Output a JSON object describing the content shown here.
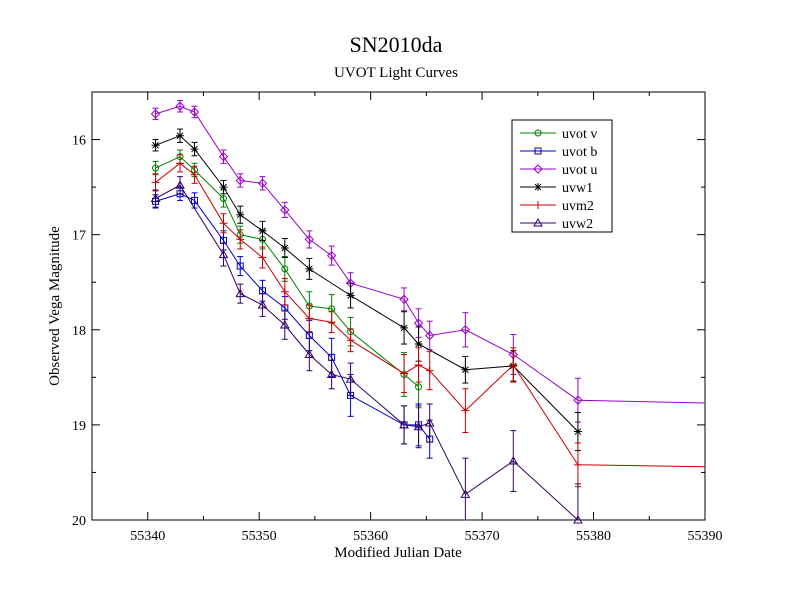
{
  "chart_data": {
    "type": "line",
    "title": "SN2010da",
    "subtitle": "UVOT Light Curves",
    "xlabel": "Modified Julian Date",
    "ylabel": "Observed Vega Magnitude",
    "xlim": [
      55335,
      55390
    ],
    "ylim": [
      20,
      15.5
    ],
    "y_inverted": true,
    "x_ticks": [
      55340,
      55350,
      55360,
      55370,
      55380,
      55390
    ],
    "y_ticks": [
      16,
      17,
      18,
      19,
      20
    ],
    "grid": false,
    "legend_position": "top-right",
    "series": [
      {
        "name": "uvot v",
        "color": "#008000",
        "marker": "circle",
        "x": [
          55340.7,
          55342.9,
          55344.2,
          55346.8,
          55348.3,
          55350.3,
          55352.3,
          55354.5,
          55356.5,
          55358.2,
          55363.0,
          55364.3
        ],
        "y": [
          16.3,
          16.18,
          16.32,
          16.62,
          17.0,
          17.05,
          17.36,
          17.75,
          17.78,
          18.02,
          18.47,
          18.6
        ],
        "err": [
          0.07,
          0.07,
          0.07,
          0.09,
          0.09,
          0.1,
          0.13,
          0.15,
          0.15,
          0.15,
          0.23,
          0.22
        ]
      },
      {
        "name": "uvot b",
        "color": "#0000cc",
        "marker": "square",
        "x": [
          55340.7,
          55342.9,
          55344.2,
          55346.8,
          55348.3,
          55350.3,
          55352.3,
          55354.5,
          55356.5,
          55358.2,
          55363.0,
          55364.3,
          55365.3
        ],
        "y": [
          16.65,
          16.57,
          16.64,
          17.06,
          17.33,
          17.59,
          17.77,
          18.06,
          18.29,
          18.69,
          19.0,
          19.0,
          19.15
        ],
        "err": [
          0.07,
          0.07,
          0.08,
          0.1,
          0.1,
          0.11,
          0.12,
          0.16,
          0.2,
          0.22,
          0.2,
          0.22,
          0.2
        ]
      },
      {
        "name": "uvot u",
        "color": "#9900cc",
        "marker": "diamond",
        "x": [
          55340.7,
          55342.9,
          55344.2,
          55346.8,
          55348.3,
          55350.3,
          55352.3,
          55354.5,
          55356.5,
          55358.2,
          55363.0,
          55364.3,
          55365.3,
          55368.5,
          55372.8,
          55378.6,
          55390
        ],
        "y": [
          15.73,
          15.65,
          15.71,
          16.18,
          16.43,
          16.46,
          16.74,
          17.05,
          17.22,
          17.51,
          17.68,
          17.93,
          18.06,
          18.0,
          18.26,
          18.74,
          18.77
        ],
        "err": [
          0.06,
          0.06,
          0.06,
          0.07,
          0.07,
          0.07,
          0.08,
          0.09,
          0.1,
          0.11,
          0.12,
          0.15,
          0.15,
          0.18,
          0.21,
          0.23,
          null
        ]
      },
      {
        "name": "uvw1",
        "color": "#000000",
        "marker": "star",
        "x": [
          55340.7,
          55342.9,
          55344.2,
          55346.8,
          55348.3,
          55350.3,
          55352.3,
          55354.5,
          55358.2,
          55363.0,
          55364.3,
          55368.5,
          55372.8,
          55378.6
        ],
        "y": [
          16.06,
          15.96,
          16.1,
          16.5,
          16.79,
          16.96,
          17.14,
          17.36,
          17.64,
          17.98,
          18.15,
          18.42,
          18.38,
          19.07
        ],
        "err": [
          0.06,
          0.07,
          0.07,
          0.07,
          0.09,
          0.1,
          0.1,
          0.11,
          0.13,
          0.17,
          0.18,
          0.14,
          0.16,
          0.2
        ]
      },
      {
        "name": "uvm2",
        "color": "#cc0000",
        "marker": "plus",
        "x": [
          55340.7,
          55342.9,
          55344.2,
          55346.8,
          55348.3,
          55350.3,
          55352.3,
          55354.5,
          55356.5,
          55358.2,
          55363.0,
          55364.3,
          55365.3,
          55368.5,
          55372.8,
          55378.6,
          55390
        ],
        "y": [
          16.45,
          16.25,
          16.37,
          16.88,
          17.05,
          17.24,
          17.6,
          17.88,
          17.92,
          18.11,
          18.46,
          18.37,
          18.43,
          18.85,
          18.37,
          19.42,
          19.44
        ],
        "err": [
          0.09,
          0.09,
          0.09,
          0.1,
          0.1,
          0.11,
          0.14,
          0.14,
          0.11,
          0.12,
          0.2,
          0.18,
          0.2,
          0.23,
          0.18,
          0.23,
          null
        ]
      },
      {
        "name": "uvw2",
        "color": "#330066",
        "marker": "triangle",
        "x": [
          55340.7,
          55342.9,
          55346.8,
          55348.3,
          55350.3,
          55352.3,
          55354.5,
          55356.5,
          55358.2,
          55363.0,
          55364.3,
          55365.3,
          55368.5,
          55372.8,
          55378.6
        ],
        "y": [
          16.62,
          16.48,
          17.21,
          17.62,
          17.74,
          17.95,
          18.26,
          18.47,
          18.52,
          19.0,
          19.02,
          18.98,
          19.73,
          19.38,
          20.0
        ],
        "err": [
          0.09,
          0.09,
          0.12,
          0.1,
          0.12,
          0.15,
          0.17,
          0.15,
          0.17,
          0.2,
          0.22,
          0.2,
          0.38,
          0.32,
          0.38
        ]
      }
    ]
  }
}
